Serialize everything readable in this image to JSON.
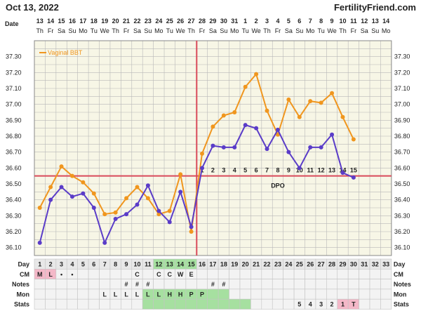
{
  "header": {
    "date_title": "Oct 13, 2022",
    "site": "FertilityFriend.com"
  },
  "colors": {
    "bbt_line": "#f0961e",
    "second_line": "#5a3cc8",
    "coverline": "#d94a5a",
    "grid": "#b8b8b8",
    "chart_bg": "#f7f6e6",
    "cell_green": "#a6e0a0",
    "cell_pink": "#f4b8c8",
    "cell_bg": "#f3f3f3"
  },
  "chart_data": {
    "type": "line",
    "title": "",
    "legend": {
      "label": "Vaginal BBT",
      "position": "top-left"
    },
    "date_row_label": "Date",
    "dates": [
      "13",
      "14",
      "15",
      "16",
      "17",
      "18",
      "19",
      "20",
      "21",
      "22",
      "23",
      "24",
      "25",
      "26",
      "27",
      "28",
      "29",
      "30",
      "31",
      "1",
      "2",
      "3",
      "4",
      "5",
      "6",
      "7",
      "8",
      "9",
      "10",
      "11",
      "12",
      "13",
      "14"
    ],
    "weekdays": [
      "Th",
      "Fr",
      "Sa",
      "Su",
      "Mo",
      "Tu",
      "We",
      "Th",
      "Fr",
      "Sa",
      "Su",
      "Mo",
      "Tu",
      "We",
      "Th",
      "Fr",
      "Sa",
      "Su",
      "Mo",
      "Tu",
      "We",
      "Th",
      "Fr",
      "Sa",
      "Su",
      "Mo",
      "Tu",
      "We",
      "Th",
      "Fr",
      "Sa",
      "Su",
      "Mo"
    ],
    "days": [
      1,
      2,
      3,
      4,
      5,
      6,
      7,
      8,
      9,
      10,
      11,
      12,
      13,
      14,
      15,
      16,
      17,
      18,
      19,
      20,
      21,
      22,
      23,
      24,
      25,
      26,
      27,
      28,
      29,
      30,
      31,
      32,
      33
    ],
    "ylim": [
      36.05,
      37.4
    ],
    "yticks": [
      "36.10",
      "36.20",
      "36.30",
      "36.40",
      "36.50",
      "36.60",
      "36.70",
      "36.80",
      "36.90",
      "37.00",
      "37.10",
      "37.20",
      "37.30"
    ],
    "series": [
      {
        "name": "Vaginal BBT",
        "color": "#f0961e",
        "values": [
          36.35,
          36.48,
          36.61,
          36.55,
          36.51,
          36.44,
          36.31,
          36.32,
          36.41,
          36.48,
          36.41,
          36.31,
          36.33,
          36.56,
          36.2,
          36.69,
          36.86,
          36.93,
          36.95,
          37.11,
          37.19,
          36.96,
          36.81,
          37.03,
          36.92,
          37.02,
          37.01,
          37.07,
          36.92,
          36.78,
          null,
          null,
          null
        ]
      },
      {
        "color": "#5a3cc8",
        "values": [
          36.13,
          36.4,
          36.48,
          36.42,
          36.44,
          36.35,
          36.13,
          36.28,
          36.31,
          36.37,
          36.49,
          36.33,
          36.26,
          36.45,
          36.23,
          36.6,
          36.74,
          36.73,
          36.73,
          36.87,
          36.85,
          36.72,
          36.84,
          36.7,
          36.6,
          36.73,
          36.73,
          36.81,
          36.57,
          36.54,
          null,
          null,
          null
        ]
      }
    ],
    "coverline": 36.55,
    "ovulation_day": 15,
    "dpo_label": "DPO",
    "dpo_numbers": [
      "1",
      "2",
      "3",
      "4",
      "5",
      "6",
      "7",
      "8",
      "9",
      "10",
      "11",
      "12",
      "13",
      "14",
      "15"
    ],
    "rows": [
      {
        "label": "Day"
      },
      {
        "label": "CM",
        "cells": {
          "1": "M",
          "2": "L",
          "3": "•",
          "4": "•",
          "10": "C",
          "12": "C",
          "13": "C",
          "14": "W",
          "15": "E"
        }
      },
      {
        "label": "Notes",
        "cells": {
          "9": "#",
          "10": "#",
          "11": "#",
          "17": "#",
          "18": "#"
        }
      },
      {
        "label": "Mon",
        "cells": {
          "7": "L",
          "8": "L",
          "9": "L",
          "10": "L",
          "11": "L",
          "12": "L",
          "13": "H",
          "14": "H",
          "15": "P",
          "16": "P"
        }
      },
      {
        "label": "Stats",
        "cells": {
          "25": "5",
          "26": "4",
          "27": "3",
          "28": "2",
          "29": "1",
          "30": "T"
        }
      }
    ]
  }
}
